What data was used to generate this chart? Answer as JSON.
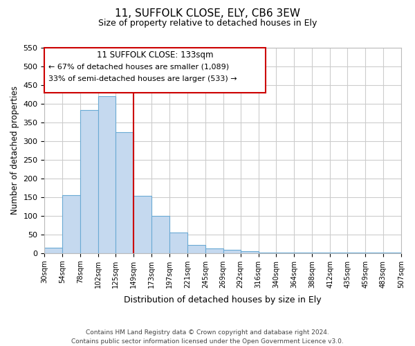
{
  "title": "11, SUFFOLK CLOSE, ELY, CB6 3EW",
  "subtitle": "Size of property relative to detached houses in Ely",
  "xlabel": "Distribution of detached houses by size in Ely",
  "ylabel": "Number of detached properties",
  "bar_color": "#c5d9ef",
  "bar_edge_color": "#6aaad4",
  "vline_color": "#cc0000",
  "bin_edges": [
    30,
    54,
    78,
    102,
    125,
    149,
    173,
    197,
    221,
    245,
    269,
    292,
    316,
    340,
    364,
    388,
    412,
    435,
    459,
    483,
    507
  ],
  "tick_labels": [
    "30sqm",
    "54sqm",
    "78sqm",
    "102sqm",
    "125sqm",
    "149sqm",
    "173sqm",
    "197sqm",
    "221sqm",
    "245sqm",
    "269sqm",
    "292sqm",
    "316sqm",
    "340sqm",
    "364sqm",
    "388sqm",
    "412sqm",
    "435sqm",
    "459sqm",
    "483sqm",
    "507sqm"
  ],
  "heights": [
    15,
    155,
    383,
    420,
    323,
    153,
    100,
    55,
    22,
    12,
    8,
    5,
    2,
    2,
    1,
    1,
    1,
    1,
    1,
    1
  ],
  "ylim": [
    0,
    550
  ],
  "yticks": [
    0,
    50,
    100,
    150,
    200,
    250,
    300,
    350,
    400,
    450,
    500,
    550
  ],
  "vline_position": 4,
  "annotation_title": "11 SUFFOLK CLOSE: 133sqm",
  "annotation_line1": "← 67% of detached houses are smaller (1,089)",
  "annotation_line2": "33% of semi-detached houses are larger (533) →",
  "footer_line1": "Contains HM Land Registry data © Crown copyright and database right 2024.",
  "footer_line2": "Contains public sector information licensed under the Open Government Licence v3.0.",
  "background_color": "#ffffff",
  "grid_color": "#cccccc"
}
